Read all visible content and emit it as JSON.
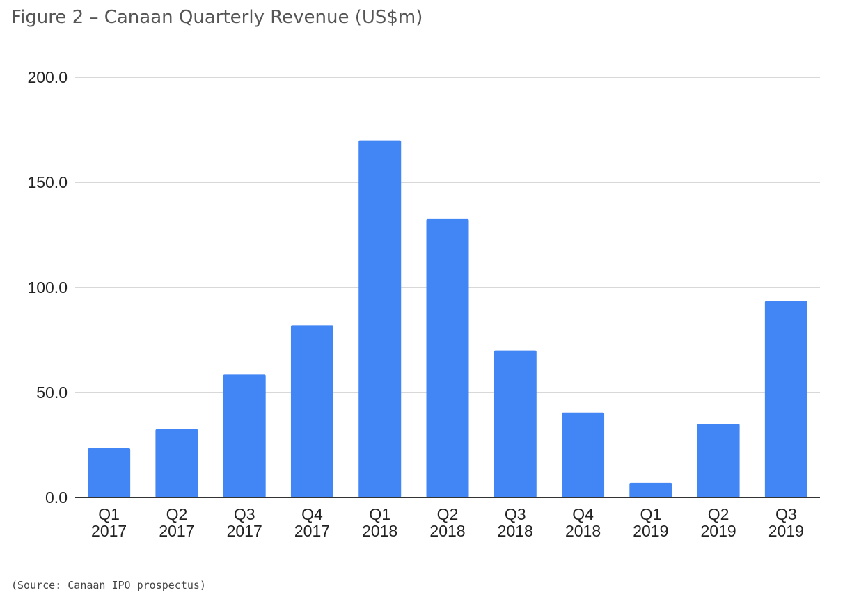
{
  "figure": {
    "title": "Figure 2 – Canaan Quarterly Revenue (US$m)",
    "source": "(Source: Canaan IPO prospectus)"
  },
  "chart_data": {
    "type": "bar",
    "title": "",
    "xlabel": "",
    "ylabel": "",
    "categories": [
      [
        "Q1",
        "2017"
      ],
      [
        "Q2",
        "2017"
      ],
      [
        "Q3",
        "2017"
      ],
      [
        "Q4",
        "2017"
      ],
      [
        "Q1",
        "2018"
      ],
      [
        "Q2",
        "2018"
      ],
      [
        "Q3",
        "2018"
      ],
      [
        "Q4",
        "2018"
      ],
      [
        "Q1",
        "2019"
      ],
      [
        "Q2",
        "2019"
      ],
      [
        "Q3",
        "2019"
      ]
    ],
    "values": [
      23.5,
      32.5,
      58.5,
      82,
      170,
      132.5,
      70,
      40.5,
      7,
      35,
      93.5
    ],
    "ylim": [
      0,
      200
    ],
    "yticks": [
      {
        "value": 0,
        "label": "0.0"
      },
      {
        "value": 50,
        "label": "50.0"
      },
      {
        "value": 100,
        "label": "100.0"
      },
      {
        "value": 150,
        "label": "150.0"
      },
      {
        "value": 200,
        "label": "200.0"
      }
    ],
    "grid": true,
    "legend": "none",
    "bar_color": "#4285F4",
    "grid_color": "#CCCCCC",
    "axis_color": "#333333"
  }
}
